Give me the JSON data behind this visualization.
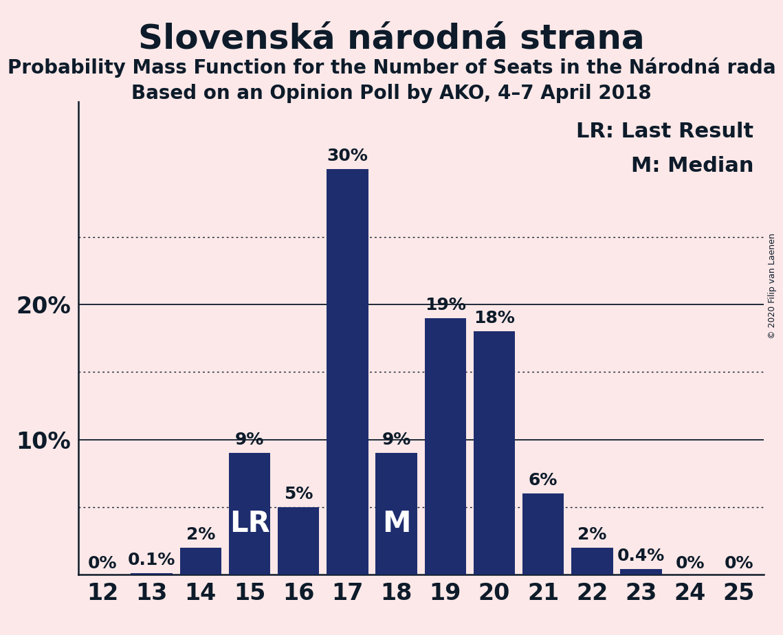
{
  "title": "Slovenská národná strana",
  "subtitle1": "Probability Mass Function for the Number of Seats in the Národná rada",
  "subtitle2": "Based on an Opinion Poll by AKO, 4–7 April 2018",
  "copyright": "© 2020 Filip van Laenen",
  "seats": [
    12,
    13,
    14,
    15,
    16,
    17,
    18,
    19,
    20,
    21,
    22,
    23,
    24,
    25
  ],
  "probabilities": [
    0.0,
    0.1,
    2.0,
    9.0,
    5.0,
    30.0,
    9.0,
    19.0,
    18.0,
    6.0,
    2.0,
    0.4,
    0.0,
    0.0
  ],
  "bar_labels": [
    "0%",
    "0.1%",
    "2%",
    "9%",
    "5%",
    "30%",
    "9%",
    "19%",
    "18%",
    "6%",
    "2%",
    "0.4%",
    "0%",
    "0%"
  ],
  "lr_seat": 15,
  "median_seat": 18,
  "lr_label": "LR",
  "median_label": "M",
  "legend_lr": "LR: Last Result",
  "legend_m": "M: Median",
  "bar_color": "#1e2d6e",
  "background_color": "#fce8e8",
  "text_color": "#0d1b2a",
  "title_fontsize": 36,
  "subtitle_fontsize": 20,
  "ylabel_fontsize": 24,
  "xlabel_fontsize": 24,
  "bar_label_fontsize": 18,
  "lr_m_fontsize": 30,
  "legend_fontsize": 22,
  "solid_gridlines": [
    10,
    20
  ],
  "dotted_gridlines": [
    5,
    15,
    25
  ],
  "yticks": [
    10,
    20
  ],
  "ytick_labels": [
    "10%",
    "20%"
  ],
  "ylim": [
    0,
    35
  ],
  "xlim": [
    11.5,
    25.5
  ]
}
